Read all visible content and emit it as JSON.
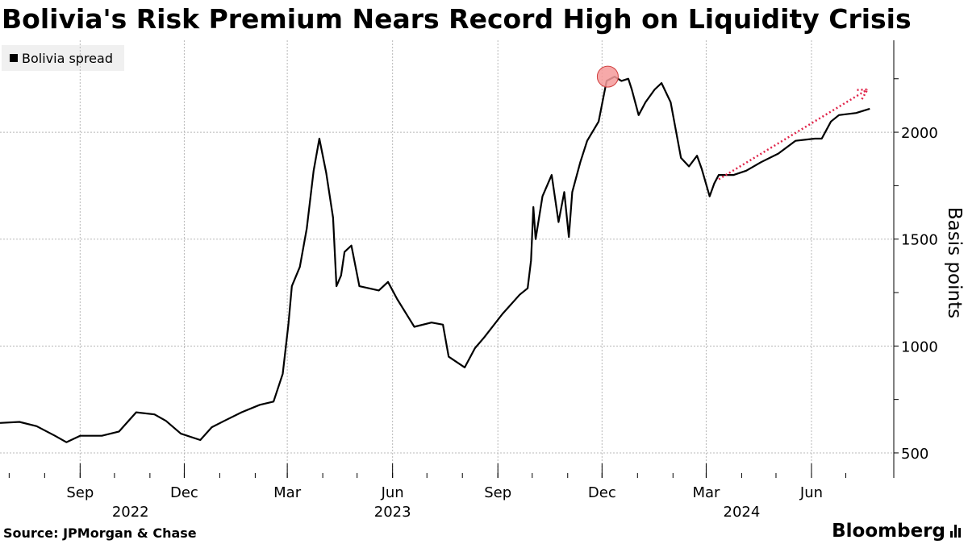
{
  "header": {
    "title": "Bolivia's Risk Premium Nears Record High on Liquidity Crisis"
  },
  "footer": {
    "source": "Source: JPMorgan & Chase",
    "brand": "Bloomberg"
  },
  "chart_data": {
    "type": "line",
    "title": "Bolivia's Risk Premium Nears Record High on Liquidity Crisis",
    "ylabel": "Basis points",
    "xlabel": "",
    "ylim": [
      383,
      2430
    ],
    "yticks": [
      500,
      1000,
      1500,
      2000
    ],
    "grid": true,
    "legend": [
      "Bolivia spread"
    ],
    "legend_position": "top-left",
    "x_axis": {
      "range": [
        "2022-06-23",
        "2024-07-26"
      ],
      "month_ticks": [
        {
          "label": "Sep",
          "date": "2022-09-01"
        },
        {
          "label": "Dec",
          "date": "2022-12-01"
        },
        {
          "label": "Mar",
          "date": "2023-03-01"
        },
        {
          "label": "Jun",
          "date": "2023-06-01"
        },
        {
          "label": "Sep",
          "date": "2023-09-01"
        },
        {
          "label": "Dec",
          "date": "2023-12-01"
        },
        {
          "label": "Mar",
          "date": "2024-03-01"
        },
        {
          "label": "Jun",
          "date": "2024-06-01"
        }
      ],
      "year_labels": [
        {
          "label": "2022",
          "date": "2022-10-15"
        },
        {
          "label": "2023",
          "date": "2023-06-01"
        },
        {
          "label": "2024",
          "date": "2024-04-01"
        }
      ]
    },
    "series": [
      {
        "name": "Bolivia spread",
        "color": "#000000",
        "points": [
          [
            "2022-06-23",
            640
          ],
          [
            "2022-07-10",
            645
          ],
          [
            "2022-07-25",
            625
          ],
          [
            "2022-08-10",
            580
          ],
          [
            "2022-08-20",
            550
          ],
          [
            "2022-09-01",
            580
          ],
          [
            "2022-09-20",
            580
          ],
          [
            "2022-10-05",
            600
          ],
          [
            "2022-10-20",
            690
          ],
          [
            "2022-11-05",
            680
          ],
          [
            "2022-11-15",
            650
          ],
          [
            "2022-11-28",
            590
          ],
          [
            "2022-12-15",
            560
          ],
          [
            "2022-12-25",
            620
          ],
          [
            "2023-01-05",
            650
          ],
          [
            "2023-01-20",
            690
          ],
          [
            "2023-02-05",
            725
          ],
          [
            "2023-02-17",
            740
          ],
          [
            "2023-02-25",
            870
          ],
          [
            "2023-03-02",
            1100
          ],
          [
            "2023-03-05",
            1280
          ],
          [
            "2023-03-12",
            1370
          ],
          [
            "2023-03-18",
            1550
          ],
          [
            "2023-03-24",
            1820
          ],
          [
            "2023-03-29",
            1970
          ],
          [
            "2023-04-04",
            1810
          ],
          [
            "2023-04-10",
            1600
          ],
          [
            "2023-04-13",
            1280
          ],
          [
            "2023-04-17",
            1330
          ],
          [
            "2023-04-20",
            1440
          ],
          [
            "2023-04-26",
            1470
          ],
          [
            "2023-05-03",
            1280
          ],
          [
            "2023-05-20",
            1260
          ],
          [
            "2023-05-28",
            1300
          ],
          [
            "2023-06-05",
            1220
          ],
          [
            "2023-06-20",
            1090
          ],
          [
            "2023-07-05",
            1110
          ],
          [
            "2023-07-15",
            1100
          ],
          [
            "2023-07-20",
            950
          ],
          [
            "2023-08-03",
            900
          ],
          [
            "2023-08-12",
            990
          ],
          [
            "2023-08-20",
            1040
          ],
          [
            "2023-09-05",
            1150
          ],
          [
            "2023-09-20",
            1240
          ],
          [
            "2023-09-27",
            1270
          ],
          [
            "2023-09-30",
            1400
          ],
          [
            "2023-10-02",
            1650
          ],
          [
            "2023-10-04",
            1500
          ],
          [
            "2023-10-10",
            1700
          ],
          [
            "2023-10-18",
            1800
          ],
          [
            "2023-10-24",
            1580
          ],
          [
            "2023-10-29",
            1720
          ],
          [
            "2023-11-02",
            1510
          ],
          [
            "2023-11-05",
            1720
          ],
          [
            "2023-11-12",
            1860
          ],
          [
            "2023-11-18",
            1960
          ],
          [
            "2023-11-28",
            2050
          ],
          [
            "2023-12-05",
            2240
          ],
          [
            "2023-12-12",
            2260
          ],
          [
            "2023-12-18",
            2240
          ],
          [
            "2023-12-24",
            2250
          ],
          [
            "2023-12-27",
            2200
          ],
          [
            "2024-01-02",
            2080
          ],
          [
            "2024-01-08",
            2140
          ],
          [
            "2024-01-16",
            2200
          ],
          [
            "2024-01-22",
            2230
          ],
          [
            "2024-01-30",
            2140
          ],
          [
            "2024-02-08",
            1880
          ],
          [
            "2024-02-15",
            1840
          ],
          [
            "2024-02-22",
            1890
          ],
          [
            "2024-02-26",
            1830
          ],
          [
            "2024-03-04",
            1700
          ],
          [
            "2024-03-08",
            1760
          ],
          [
            "2024-03-12",
            1800
          ],
          [
            "2024-03-25",
            1800
          ],
          [
            "2024-04-05",
            1820
          ],
          [
            "2024-04-18",
            1860
          ],
          [
            "2024-05-03",
            1900
          ],
          [
            "2024-05-18",
            1960
          ],
          [
            "2024-06-04",
            1970
          ],
          [
            "2024-06-10",
            1970
          ],
          [
            "2024-06-18",
            2050
          ],
          [
            "2024-06-25",
            2080
          ],
          [
            "2024-07-10",
            2090
          ],
          [
            "2024-07-22",
            2110
          ]
        ]
      }
    ],
    "annotations": [
      {
        "type": "marker-circle",
        "date": "2023-12-06",
        "value": 2260,
        "color": "#f49a9a",
        "label": "record high"
      },
      {
        "type": "arrow",
        "from": [
          "2024-03-12",
          1780
        ],
        "to": [
          "2024-07-20",
          2200
        ],
        "color": "#e0254a",
        "style": "dotted"
      }
    ]
  }
}
